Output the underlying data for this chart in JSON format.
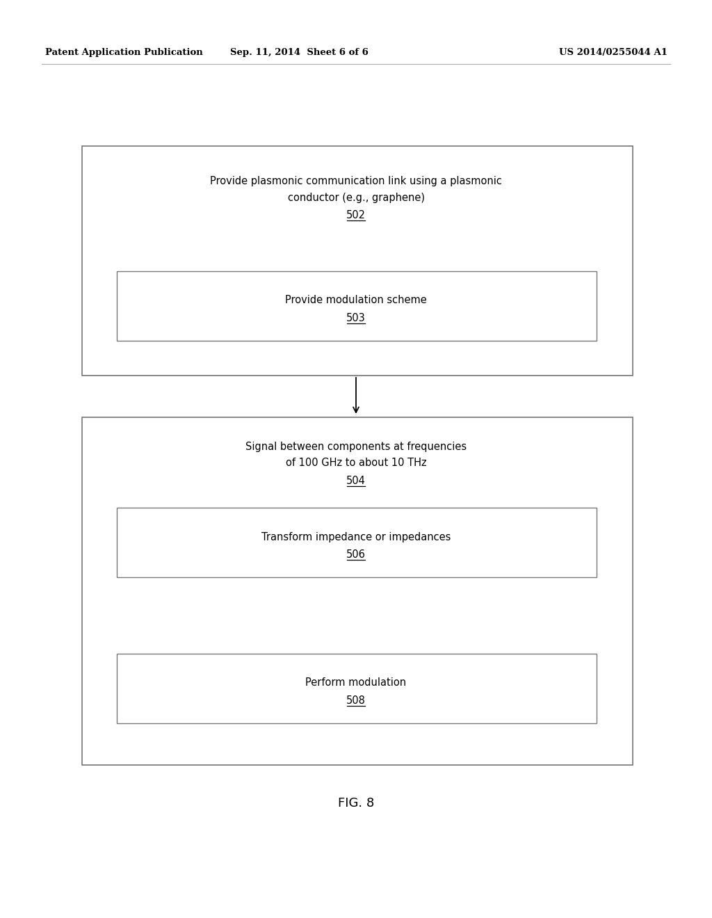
{
  "background_color": "#ffffff",
  "header_left": "Patent Application Publication",
  "header_center": "Sep. 11, 2014  Sheet 6 of 6",
  "header_right": "US 2014/0255044 A1",
  "footer_label": "FIG. 8",
  "box1_text_line1": "Provide plasmonic communication link using a plasmonic",
  "box1_text_line2": "conductor (e.g., graphene)",
  "box1_label": "502",
  "box2_text": "Provide modulation scheme",
  "box2_label": "503",
  "box3_text_line1": "Signal between components at frequencies",
  "box3_text_line2": "of 100 GHz to about 10 THz",
  "box3_label": "504",
  "box4_text": "Transform impedance or impedances",
  "box4_label": "506",
  "box5_text": "Perform modulation",
  "box5_label": "508",
  "text_color": "#000000",
  "box_edge_color": "#777777",
  "box_fill_color": "#ffffff",
  "header_fontsize": 9.5,
  "body_fontsize": 10.5,
  "label_fontsize": 10.5,
  "footer_fontsize": 13
}
